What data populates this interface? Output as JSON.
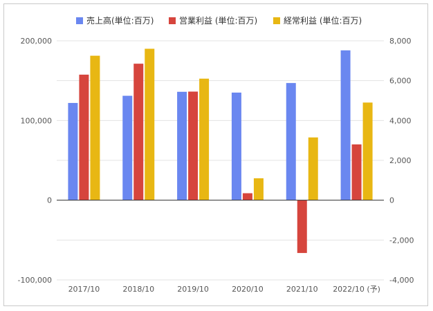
{
  "chart_data": {
    "type": "bar",
    "categories": [
      "2017/10",
      "2018/10",
      "2019/10",
      "2020/10",
      "2021/10",
      "2022/10 (予)"
    ],
    "series": [
      {
        "name": "売上高(単位:百万)",
        "axis": "left",
        "color": "#6a87f0",
        "values": [
          122000,
          131000,
          136000,
          135000,
          147000,
          188000
        ]
      },
      {
        "name": "営業利益 (単位:百万)",
        "axis": "right",
        "color": "#d6453d",
        "values": [
          6300,
          6850,
          5450,
          350,
          -2650,
          2800
        ]
      },
      {
        "name": "経常利益 (単位:百万)",
        "axis": "right",
        "color": "#e8b713",
        "values": [
          7250,
          7600,
          6100,
          1100,
          3150,
          4900
        ]
      }
    ],
    "left_axis": {
      "ylim": [
        -100000,
        200000
      ],
      "ticks": [
        200000,
        100000,
        0,
        -100000
      ],
      "tick_labels": [
        "200,000",
        "100,000",
        "0",
        "-100,000"
      ]
    },
    "right_axis": {
      "ylim": [
        -4000,
        8000
      ],
      "ticks": [
        8000,
        6000,
        4000,
        2000,
        0,
        -2000,
        -4000
      ],
      "tick_labels": [
        "8,000",
        "6,000",
        "4,000",
        "2,000",
        "0",
        "-2,000",
        "-4,000"
      ]
    },
    "grid": true,
    "legend_position": "top"
  }
}
